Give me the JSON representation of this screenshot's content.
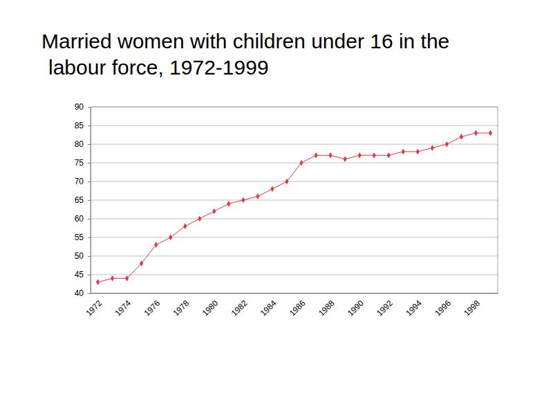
{
  "chart_data": {
    "type": "line",
    "title": "Married women with children under 16 in the labour force, 1972-1999",
    "categories": [
      "1972",
      null,
      "1974",
      null,
      "1976",
      null,
      "1978",
      null,
      "1980",
      null,
      "1982",
      null,
      "1984",
      null,
      "1986",
      null,
      "1988",
      null,
      "1990",
      null,
      "1992",
      null,
      "1994",
      null,
      "1996",
      null,
      "1998",
      null
    ],
    "values": [
      43,
      44,
      44,
      48,
      53,
      55,
      58,
      60,
      62,
      64,
      65,
      66,
      68,
      70,
      75,
      77,
      77,
      76,
      77,
      77,
      77,
      78,
      78,
      79,
      80,
      82,
      83,
      83
    ],
    "color": "#e8353a",
    "marker": "diamond",
    "ylim": [
      40,
      90
    ],
    "yticks": [
      40,
      45,
      50,
      55,
      60,
      65,
      70,
      75,
      80,
      85,
      90
    ],
    "grid": true
  }
}
